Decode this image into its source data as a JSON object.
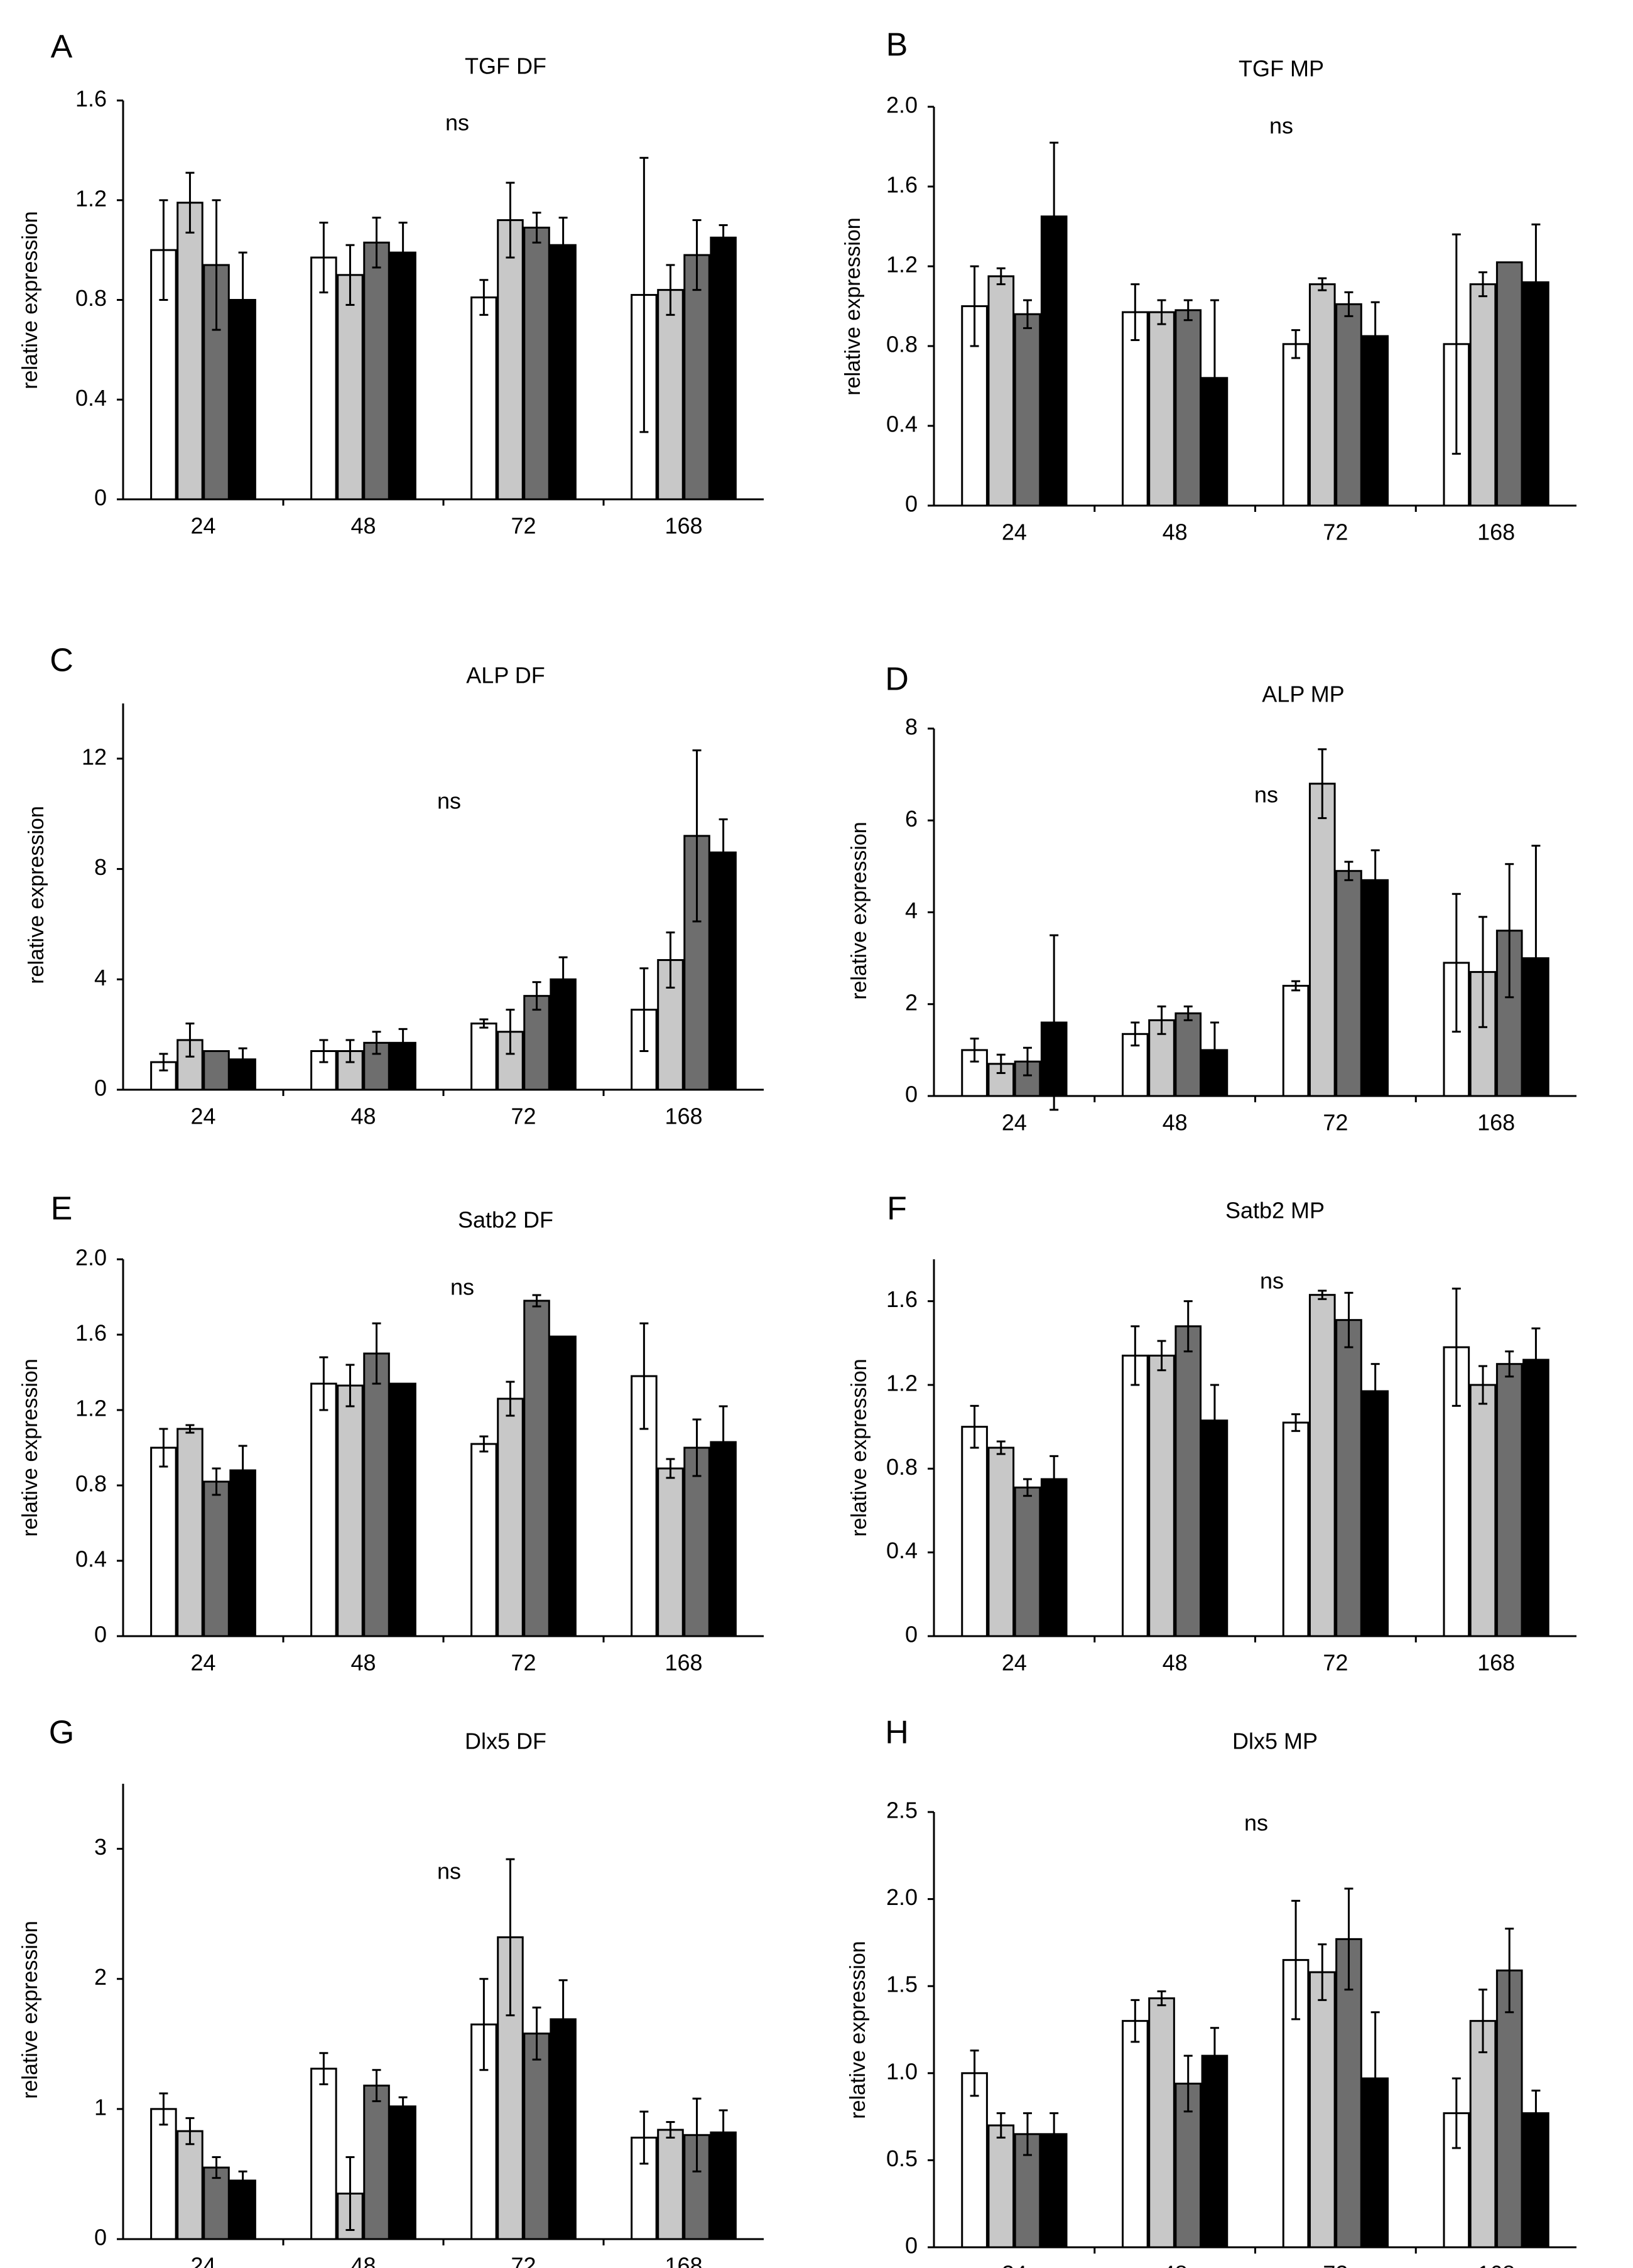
{
  "figure": {
    "colors": {
      "series": [
        "#ffffff",
        "#c8c8c8",
        "#6e6e6e",
        "#000000"
      ],
      "axis": "#000000"
    }
  },
  "chart_data": [
    {
      "letter": "A",
      "type": "bar",
      "title": "TGF DF",
      "ylabel": "relative expression",
      "annotation": "ns",
      "categories": [
        "24",
        "48",
        "72",
        "168"
      ],
      "yticks": [
        "0",
        "0.4",
        "0.8",
        "1.2",
        "1.6"
      ],
      "ylim": [
        0,
        1.6
      ],
      "series": [
        {
          "name": "series 1",
          "values": [
            1.0,
            0.97,
            0.81,
            0.82
          ],
          "err": [
            0.2,
            0.14,
            0.07,
            0.55
          ]
        },
        {
          "name": "series 2",
          "values": [
            1.19,
            0.9,
            1.12,
            0.84
          ],
          "err": [
            0.12,
            0.12,
            0.15,
            0.1
          ]
        },
        {
          "name": "series 3",
          "values": [
            0.94,
            1.03,
            1.09,
            0.98
          ],
          "err": [
            0.26,
            0.1,
            0.06,
            0.14
          ]
        },
        {
          "name": "series 4",
          "values": [
            0.8,
            0.99,
            1.02,
            1.05
          ],
          "err": [
            0.19,
            0.12,
            0.11,
            0.05
          ]
        }
      ]
    },
    {
      "letter": "B",
      "type": "bar",
      "title": "TGF MP",
      "ylabel": "relative expression",
      "annotation": "ns",
      "categories": [
        "24",
        "48",
        "72",
        "168"
      ],
      "yticks": [
        "0",
        "0.4",
        "0.8",
        "1.2",
        "1.6",
        "2.0"
      ],
      "ylim": [
        0,
        2.0
      ],
      "series": [
        {
          "name": "series 1",
          "values": [
            1.0,
            0.97,
            0.81,
            0.81
          ],
          "err": [
            0.2,
            0.14,
            0.07,
            0.55
          ]
        },
        {
          "name": "series 2",
          "values": [
            1.15,
            0.97,
            1.11,
            1.11
          ],
          "err": [
            0.04,
            0.06,
            0.03,
            0.06
          ]
        },
        {
          "name": "series 3",
          "values": [
            0.96,
            0.98,
            1.01,
            1.22
          ],
          "err": [
            0.07,
            0.05,
            0.06,
            0.0
          ]
        },
        {
          "name": "series 4",
          "values": [
            1.45,
            0.64,
            0.85,
            1.12
          ],
          "err": [
            0.37,
            0.39,
            0.17,
            0.29
          ]
        }
      ]
    },
    {
      "letter": "C",
      "type": "bar",
      "title": "ALP DF",
      "ylabel": "relative expression",
      "annotation": "ns",
      "categories": [
        "24",
        "48",
        "72",
        "168"
      ],
      "yticks": [
        "0",
        "4",
        "8",
        "12"
      ],
      "ylim": [
        0,
        14
      ],
      "series": [
        {
          "name": "series 1",
          "values": [
            1.0,
            1.4,
            2.4,
            2.9
          ],
          "err": [
            0.3,
            0.4,
            0.15,
            1.5
          ]
        },
        {
          "name": "series 2",
          "values": [
            1.8,
            1.4,
            2.1,
            4.7
          ],
          "err": [
            0.6,
            0.4,
            0.8,
            1.0
          ]
        },
        {
          "name": "series 3",
          "values": [
            1.4,
            1.7,
            3.4,
            9.2
          ],
          "err": [
            0.0,
            0.4,
            0.5,
            3.1
          ]
        },
        {
          "name": "series 4",
          "values": [
            1.1,
            1.7,
            4.0,
            8.6
          ],
          "err": [
            0.4,
            0.5,
            0.8,
            1.2
          ]
        }
      ]
    },
    {
      "letter": "D",
      "type": "bar",
      "title": "ALP MP",
      "ylabel": "relative expression",
      "annotation": "ns",
      "categories": [
        "24",
        "48",
        "72",
        "168"
      ],
      "yticks": [
        "0",
        "2",
        "4",
        "6",
        "8"
      ],
      "ylim": [
        0,
        8
      ],
      "series": [
        {
          "name": "series 1",
          "values": [
            1.0,
            1.35,
            2.4,
            2.9
          ],
          "err": [
            0.25,
            0.25,
            0.1,
            1.5
          ]
        },
        {
          "name": "series 2",
          "values": [
            0.7,
            1.65,
            6.8,
            2.7
          ],
          "err": [
            0.2,
            0.3,
            0.75,
            1.2
          ]
        },
        {
          "name": "series 3",
          "values": [
            0.75,
            1.8,
            4.9,
            3.6
          ],
          "err": [
            0.3,
            0.15,
            0.2,
            1.45
          ]
        },
        {
          "name": "series 4",
          "values": [
            1.6,
            1.0,
            4.7,
            3.0
          ],
          "err": [
            1.9,
            0.6,
            0.65,
            2.45
          ]
        }
      ]
    },
    {
      "letter": "E",
      "type": "bar",
      "title": "Satb2 DF",
      "ylabel": "relative expression",
      "annotation": "ns",
      "categories": [
        "24",
        "48",
        "72",
        "168"
      ],
      "yticks": [
        "0",
        "0.4",
        "0.8",
        "1.2",
        "1.6",
        "2.0"
      ],
      "ylim": [
        0,
        2.0
      ],
      "series": [
        {
          "name": "series 1",
          "values": [
            1.0,
            1.34,
            1.02,
            1.38
          ],
          "err": [
            0.1,
            0.14,
            0.04,
            0.28
          ]
        },
        {
          "name": "series 2",
          "values": [
            1.1,
            1.33,
            1.26,
            0.89
          ],
          "err": [
            0.02,
            0.11,
            0.09,
            0.05
          ]
        },
        {
          "name": "series 3",
          "values": [
            0.82,
            1.5,
            1.78,
            1.0
          ],
          "err": [
            0.07,
            0.16,
            0.03,
            0.15
          ]
        },
        {
          "name": "series 4",
          "values": [
            0.88,
            1.34,
            1.59,
            1.03
          ],
          "err": [
            0.13,
            0.0,
            0.0,
            0.19
          ]
        }
      ]
    },
    {
      "letter": "F",
      "type": "bar",
      "title": "Satb2 MP",
      "ylabel": "relative expression",
      "annotation": "ns",
      "categories": [
        "24",
        "48",
        "72",
        "168"
      ],
      "yticks": [
        "0",
        "0.4",
        "0.8",
        "1.2",
        "1.6"
      ],
      "ylim": [
        0,
        1.8
      ],
      "series": [
        {
          "name": "series 1",
          "values": [
            1.0,
            1.34,
            1.02,
            1.38
          ],
          "err": [
            0.1,
            0.14,
            0.04,
            0.28
          ]
        },
        {
          "name": "series 2",
          "values": [
            0.9,
            1.34,
            1.63,
            1.2
          ],
          "err": [
            0.03,
            0.07,
            0.02,
            0.09
          ]
        },
        {
          "name": "series 3",
          "values": [
            0.71,
            1.48,
            1.51,
            1.3
          ],
          "err": [
            0.04,
            0.12,
            0.13,
            0.06
          ]
        },
        {
          "name": "series 4",
          "values": [
            0.75,
            1.03,
            1.17,
            1.32
          ],
          "err": [
            0.11,
            0.17,
            0.13,
            0.15
          ]
        }
      ]
    },
    {
      "letter": "G",
      "type": "bar",
      "title": "Dlx5 DF",
      "ylabel": "relative expression",
      "annotation": "ns",
      "categories": [
        "24",
        "48",
        "72",
        "168"
      ],
      "yticks": [
        "0",
        "1",
        "2",
        "3"
      ],
      "ylim": [
        0,
        3.5
      ],
      "series": [
        {
          "name": "series 1",
          "values": [
            1.0,
            1.31,
            1.65,
            0.78
          ],
          "err": [
            0.12,
            0.12,
            0.35,
            0.2
          ]
        },
        {
          "name": "series 2",
          "values": [
            0.83,
            0.35,
            2.32,
            0.84
          ],
          "err": [
            0.1,
            0.28,
            0.6,
            0.06
          ]
        },
        {
          "name": "series 3",
          "values": [
            0.55,
            1.18,
            1.58,
            0.8
          ],
          "err": [
            0.08,
            0.12,
            0.2,
            0.28
          ]
        },
        {
          "name": "series 4",
          "values": [
            0.45,
            1.02,
            1.69,
            0.82
          ],
          "err": [
            0.07,
            0.07,
            0.3,
            0.17
          ]
        }
      ]
    },
    {
      "letter": "H",
      "type": "bar",
      "title": "Dlx5 MP",
      "ylabel": "relative expression",
      "annotation": "ns",
      "categories": [
        "24",
        "48",
        "72",
        "168"
      ],
      "yticks": [
        "0",
        "0.5",
        "1.0",
        "1.5",
        "2.0",
        "2.5"
      ],
      "ylim": [
        0,
        2.5
      ],
      "series": [
        {
          "name": "series 1",
          "values": [
            1.0,
            1.3,
            1.65,
            0.77
          ],
          "err": [
            0.13,
            0.12,
            0.34,
            0.2
          ]
        },
        {
          "name": "series 2",
          "values": [
            0.7,
            1.43,
            1.58,
            1.3
          ],
          "err": [
            0.07,
            0.04,
            0.16,
            0.18
          ]
        },
        {
          "name": "series 3",
          "values": [
            0.65,
            0.94,
            1.77,
            1.59
          ],
          "err": [
            0.12,
            0.16,
            0.29,
            0.24
          ]
        },
        {
          "name": "series 4",
          "values": [
            0.65,
            1.1,
            0.97,
            0.77
          ],
          "err": [
            0.12,
            0.16,
            0.38,
            0.13
          ]
        }
      ]
    }
  ]
}
